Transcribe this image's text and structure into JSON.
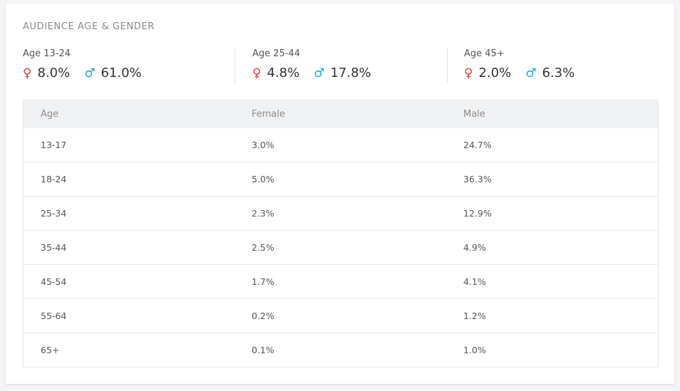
{
  "card": {
    "title": "AUDIENCE AGE & GENDER"
  },
  "summary": [
    {
      "label": "Age 13-24",
      "female": "8.0%",
      "male": "61.0%"
    },
    {
      "label": "Age 25-44",
      "female": "4.8%",
      "male": "17.8%"
    },
    {
      "label": "Age 45+",
      "female": "2.0%",
      "male": "6.3%"
    }
  ],
  "icons": {
    "female": "♀",
    "male": "♂",
    "female_color": "#e4363b",
    "male_color": "#18a7d6"
  },
  "table": {
    "headers": {
      "age": "Age",
      "female": "Female",
      "male": "Male"
    },
    "rows": [
      {
        "age": "13-17",
        "female": "3.0%",
        "male": "24.7%"
      },
      {
        "age": "18-24",
        "female": "5.0%",
        "male": "36.3%"
      },
      {
        "age": "25-34",
        "female": "2.3%",
        "male": "12.9%"
      },
      {
        "age": "35-44",
        "female": "2.5%",
        "male": "4.9%"
      },
      {
        "age": "45-54",
        "female": "1.7%",
        "male": "4.1%"
      },
      {
        "age": "55-64",
        "female": "0.2%",
        "male": "1.2%"
      },
      {
        "age": "65+",
        "female": "0.1%",
        "male": "1.0%"
      }
    ]
  }
}
